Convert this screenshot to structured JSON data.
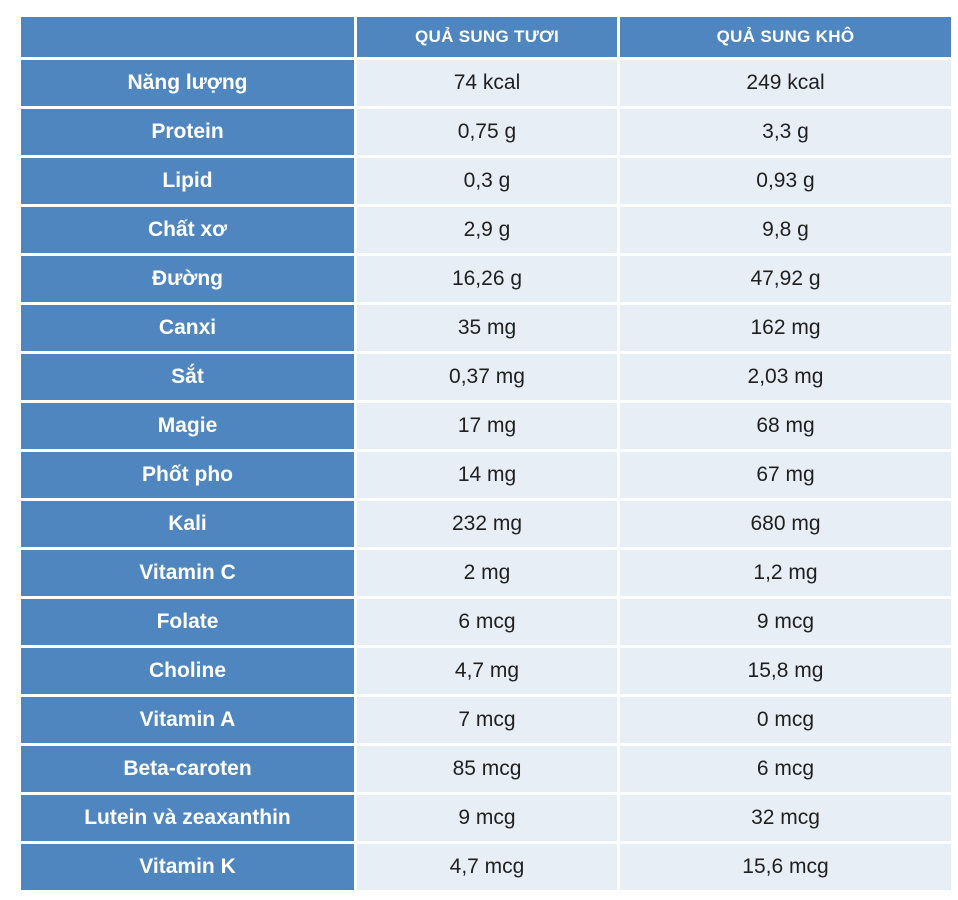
{
  "table": {
    "headers": [
      "",
      "QUẢ SUNG TƯƠI",
      "QUẢ SUNG KHÔ"
    ],
    "rows": [
      [
        "Năng lượng",
        "74 kcal",
        "249 kcal"
      ],
      [
        "Protein",
        "0,75 g",
        "3,3 g"
      ],
      [
        "Lipid",
        "0,3 g",
        "0,93 g"
      ],
      [
        "Chất xơ",
        "2,9 g",
        "9,8 g"
      ],
      [
        "Đường",
        "16,26 g",
        "47,92 g"
      ],
      [
        "Canxi",
        "35 mg",
        "162 mg"
      ],
      [
        "Sắt",
        "0,37 mg",
        "2,03 mg"
      ],
      [
        "Magie",
        "17 mg",
        "68 mg"
      ],
      [
        "Phốt pho",
        "14 mg",
        "67 mg"
      ],
      [
        "Kali",
        "232 mg",
        "680 mg"
      ],
      [
        "Vitamin C",
        "2 mg",
        "1,2 mg"
      ],
      [
        "Folate",
        "6 mcg",
        "9 mcg"
      ],
      [
        "Choline",
        "4,7 mg",
        "15,8 mg"
      ],
      [
        "Vitamin A",
        "7 mcg",
        "0 mcg"
      ],
      [
        "Beta-caroten",
        "85 mcg",
        "6 mcg"
      ],
      [
        "Lutein và zeaxanthin",
        "9 mcg",
        "32 mcg"
      ],
      [
        "Vitamin K",
        "4,7 mcg",
        "15,6 mcg"
      ]
    ]
  },
  "colors": {
    "header_blue": "#4f86c0",
    "cell_light": "#e8eef6",
    "text_dark": "#1f1f1f"
  }
}
